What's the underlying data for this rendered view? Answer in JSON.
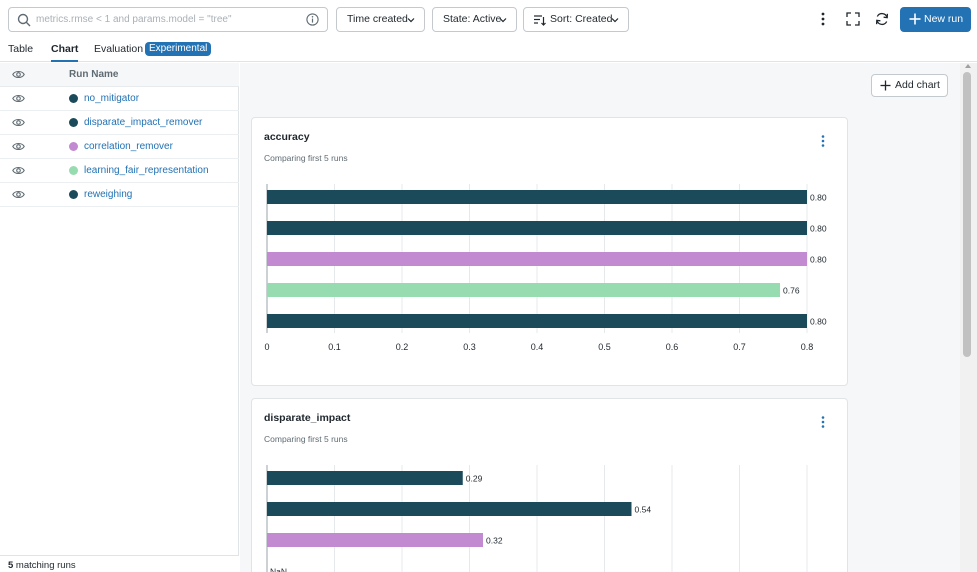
{
  "search": {
    "placeholder": "metrics.rmse < 1 and params.model = \"tree\"",
    "value": ""
  },
  "filters": {
    "time": "Time created",
    "state": "State: Active",
    "sort": "Sort: Created"
  },
  "new_run_label": "New run",
  "tabs": {
    "table": "Table",
    "chart": "Chart",
    "evaluation": "Evaluation",
    "experimental": "Experimental"
  },
  "runlist": {
    "header": "Run Name",
    "runs": [
      {
        "name": "no_mitigator",
        "color": "#1b4b5a"
      },
      {
        "name": "disparate_impact_remover",
        "color": "#1b4b5a"
      },
      {
        "name": "correlation_remover",
        "color": "#c28ad0"
      },
      {
        "name": "learning_fair_representation",
        "color": "#97dcb0"
      },
      {
        "name": "reweighing",
        "color": "#1b4b5a"
      }
    ],
    "footer_count": "5",
    "footer_text": " matching runs"
  },
  "add_chart_label": "Add chart",
  "chart_data": [
    {
      "type": "bar",
      "orientation": "horizontal",
      "title": "accuracy",
      "subtitle": "Comparing first 5 runs",
      "categories": [
        "no_mitigator",
        "disparate_impact_remover",
        "correlation_remover",
        "learning_fair_representation",
        "reweighing"
      ],
      "values": [
        0.8,
        0.8,
        0.8,
        0.76,
        0.8
      ],
      "value_labels": [
        "0.80",
        "0.80",
        "0.80",
        "0.76",
        "0.80"
      ],
      "colors": [
        "#1b4b5a",
        "#1b4b5a",
        "#c28ad0",
        "#97dcb0",
        "#1b4b5a"
      ],
      "xlim": [
        0,
        0.8
      ],
      "xticks": [
        0,
        0.1,
        0.2,
        0.3,
        0.4,
        0.5,
        0.6,
        0.7,
        0.8
      ],
      "xtick_labels": [
        "0",
        "0.1",
        "0.2",
        "0.3",
        "0.4",
        "0.5",
        "0.6",
        "0.7",
        "0.8"
      ],
      "grid": true
    },
    {
      "type": "bar",
      "orientation": "horizontal",
      "title": "disparate_impact",
      "subtitle": "Comparing first 5 runs",
      "categories": [
        "no_mitigator",
        "disparate_impact_remover",
        "correlation_remover",
        "learning_fair_representation"
      ],
      "values": [
        0.29,
        0.54,
        0.32,
        null
      ],
      "value_labels": [
        "0.29",
        "0.54",
        "0.32",
        "NaN"
      ],
      "colors": [
        "#1b4b5a",
        "#1b4b5a",
        "#c28ad0",
        "#97dcb0"
      ],
      "xlim": [
        0,
        0.8
      ],
      "xticks": [
        0,
        0.1,
        0.2,
        0.3,
        0.4,
        0.5,
        0.6,
        0.7,
        0.8
      ],
      "grid": true
    }
  ]
}
